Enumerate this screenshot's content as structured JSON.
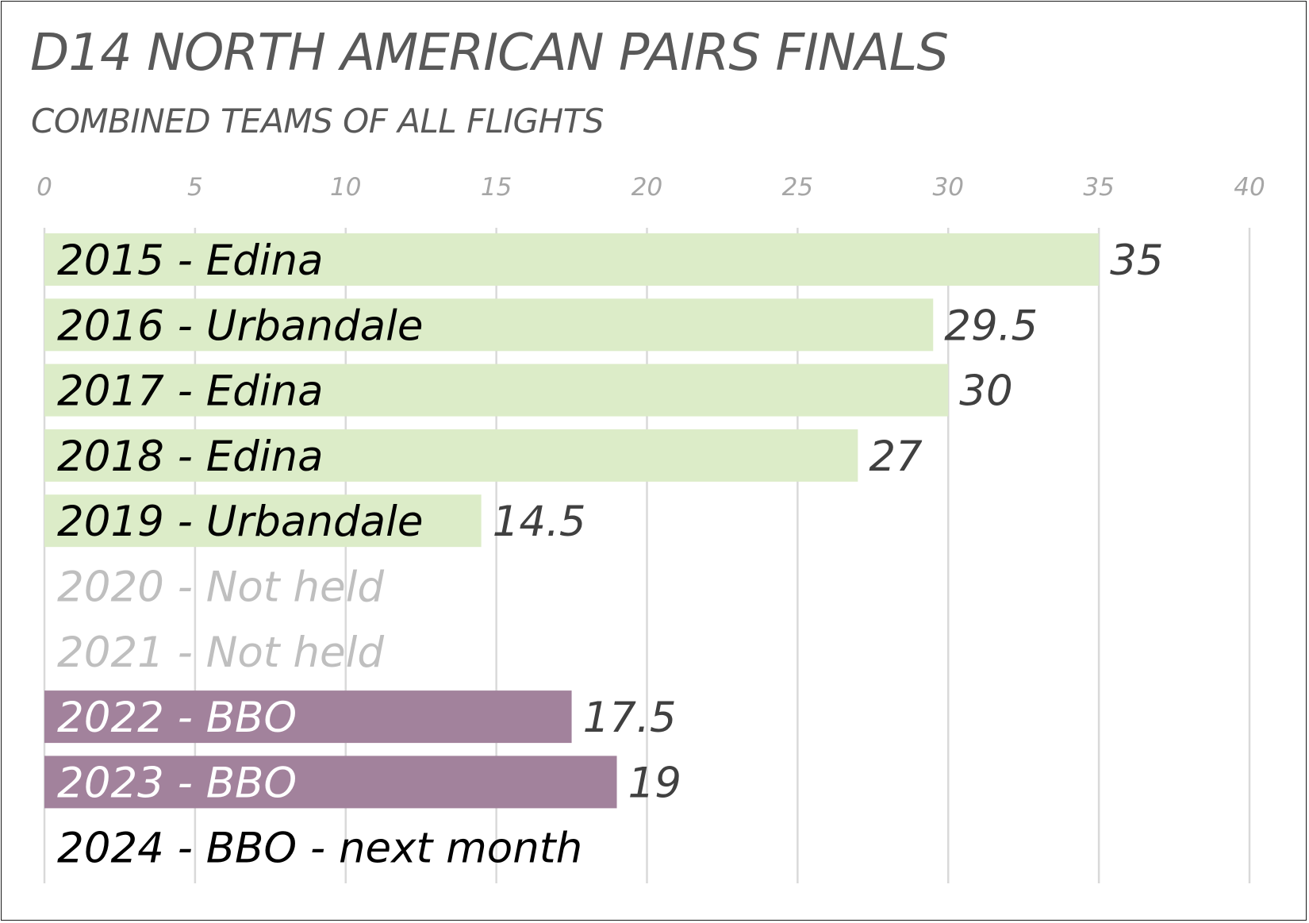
{
  "chart_data": {
    "type": "bar",
    "orientation": "horizontal",
    "title": "D14 NORTH AMERICAN PAIRS FINALS",
    "subtitle": "COMBINED TEAMS OF ALL FLIGHTS",
    "xlim": [
      0,
      40
    ],
    "x_ticks": [
      "0",
      "5",
      "10",
      "15",
      "20",
      "25",
      "30",
      "35",
      "40"
    ],
    "x_tick_values": [
      0,
      5,
      10,
      15,
      20,
      25,
      30,
      35,
      40
    ],
    "grid": true,
    "legend": "none",
    "categories": [
      "2015 - Edina",
      "2016 - Urbandale",
      "2017 - Edina",
      "2018 - Edina",
      "2019 - Urbandale",
      "2020 - Not held",
      "2021 - Not held",
      "2022 - BBO",
      "2023 - BBO",
      "2024 - BBO - next month"
    ],
    "values": [
      35,
      29.5,
      30,
      27,
      14.5,
      null,
      null,
      17.5,
      19,
      null
    ],
    "value_labels": [
      "35",
      "29.5",
      "30",
      "27",
      "14.5",
      "",
      "",
      "17.5",
      "19",
      ""
    ],
    "bar_groups": [
      "in-person",
      "in-person",
      "in-person",
      "in-person",
      "in-person",
      "none",
      "none",
      "online",
      "online",
      "none"
    ],
    "colors": {
      "in-person": "#dcecc8",
      "online": "#a2829c",
      "label_default": "#000000",
      "label_not_held": "#bfbfbf",
      "label_on_dark": "#ffffff"
    }
  }
}
